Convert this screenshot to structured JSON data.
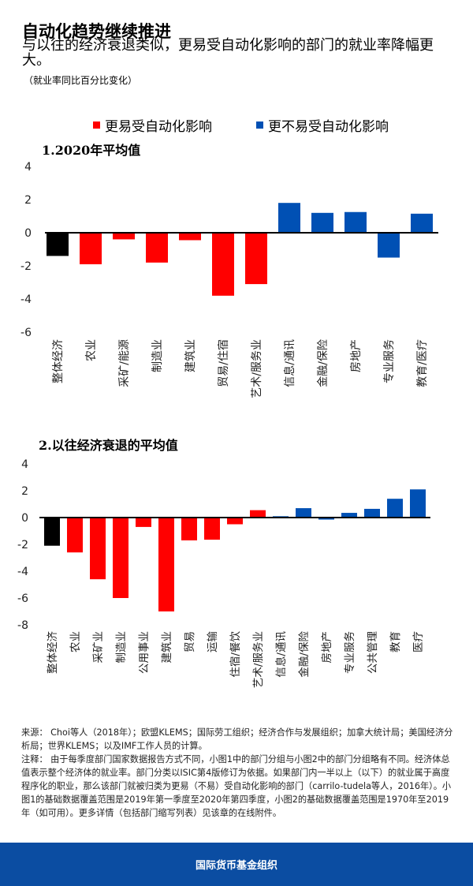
{
  "header": {
    "title": "自动化趋势继续推进",
    "subtitle": "与以往的经济衰退类似，更易受自动化影响的部门的就业率降幅更大。",
    "unit": "（就业率同比百分比变化）"
  },
  "legend": [
    {
      "label": "更易受自动化影响",
      "color": "#ff0000"
    },
    {
      "label": "更不易受自动化影响",
      "color": "#0050b4"
    }
  ],
  "colors": {
    "overall": "#000000",
    "more": "#ff0000",
    "less": "#0050b4"
  },
  "chart_data": [
    {
      "type": "bar",
      "title": "1.2020年平均值",
      "ylim": [
        -6,
        4
      ],
      "yticks": [
        4,
        2,
        0,
        -2,
        -4,
        -6
      ],
      "categories": [
        "整体经济",
        "农业",
        "采矿/能源",
        "制造业",
        "建筑业",
        "贸易/住宿",
        "艺术/服务业",
        "信息/通讯",
        "金融/保险",
        "房地产",
        "专业服务",
        "教育/医疗"
      ],
      "values": [
        -1.4,
        -1.9,
        -0.4,
        -1.8,
        -0.45,
        -3.8,
        -3.1,
        1.8,
        1.2,
        1.25,
        -1.5,
        1.15
      ],
      "groups": [
        "overall",
        "more",
        "more",
        "more",
        "more",
        "more",
        "more",
        "less",
        "less",
        "less",
        "less",
        "less"
      ]
    },
    {
      "type": "bar",
      "title": "2.以往经济衰退的平均值",
      "ylim": [
        -8,
        4
      ],
      "yticks": [
        4,
        2,
        0,
        -2,
        -4,
        -6,
        -8
      ],
      "categories": [
        "整体经济",
        "农业",
        "采矿业",
        "制造业",
        "公用事业",
        "建筑业",
        "贸易",
        "运输",
        "住宿/餐饮",
        "艺术/服务业",
        "信息/通讯",
        "金融/保险",
        "房地产",
        "专业服务",
        "公共管理",
        "教育",
        "医疗"
      ],
      "values": [
        -2.1,
        -2.6,
        -4.6,
        -6.0,
        -0.7,
        -7.0,
        -1.7,
        -1.65,
        -0.5,
        0.55,
        0.1,
        0.7,
        -0.15,
        0.35,
        0.65,
        1.4,
        2.1
      ],
      "groups": [
        "overall",
        "more",
        "more",
        "more",
        "more",
        "more",
        "more",
        "more",
        "more",
        "more",
        "less",
        "less",
        "less",
        "less",
        "less",
        "less",
        "less"
      ]
    }
  ],
  "notes": {
    "source": "来源： Choi等人（2018年）；欧盟KLEMS；国际劳工组织；经济合作与发展组织；加拿大统计局；美国经济分析局；世界KLEMS；以及IMF工作人员的计算。",
    "note": "注释： 由于每季度部门国家数据报告方式不同，小图1中的部门分组与小图2中的部门分组略有不同。经济体总值表示整个经济体的就业率。部门分类以ISIC第4版修订为依据。如果部门内一半以上（以下）的就业属于高度程序化的职业，那么该部门就被归类为更易（不易）受自动化影响的部门（carrilo-tudela等人，2016年）。小图1的基础数据覆盖范围是2019年第一季度至2020年第四季度，小图2的基础数据覆盖范围是1970年至2019年（如可用）。更多详情（包括部门缩写列表）见该章的在线附件。"
  },
  "footer": {
    "org": "国际货币基金组织"
  }
}
